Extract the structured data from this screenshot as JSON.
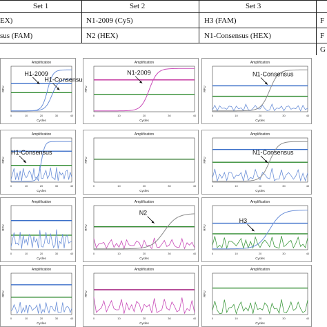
{
  "header": {
    "sets": [
      "Set 1",
      "Set 2",
      "Set 3"
    ],
    "row1": [
      "EX)",
      "N1-2009 (Cy5)",
      "H3 (FAM)",
      "F"
    ],
    "row2": [
      "sus (FAM)",
      "N2 (HEX)",
      "N1-Consensus (HEX)",
      "F"
    ],
    "row3_right": "G"
  },
  "plot_common": {
    "title": "Amplification",
    "ylabel": "RFU",
    "xlabel": "Cycles",
    "xticks": [
      "0",
      "10",
      "20",
      "30",
      "40"
    ]
  },
  "colors": {
    "blue": "#3b6fc9",
    "green": "#2f8a2f",
    "magenta": "#c0289a",
    "curve_blue": "#6a8fd8",
    "curve_gray": "#8a8a8a",
    "curve_green": "#3f9a3f",
    "curve_magenta": "#c84ab8"
  },
  "annotations": {
    "p1": [
      "H1-2009",
      "H1-Consensus"
    ],
    "p2": [
      "N1-2009"
    ],
    "p3": [
      "N1-Consensus"
    ],
    "p4": [
      "H1-Consensus"
    ],
    "p6": [
      "N1-Consensus"
    ],
    "p8": [
      "N2"
    ],
    "p9": [
      "H3"
    ]
  }
}
